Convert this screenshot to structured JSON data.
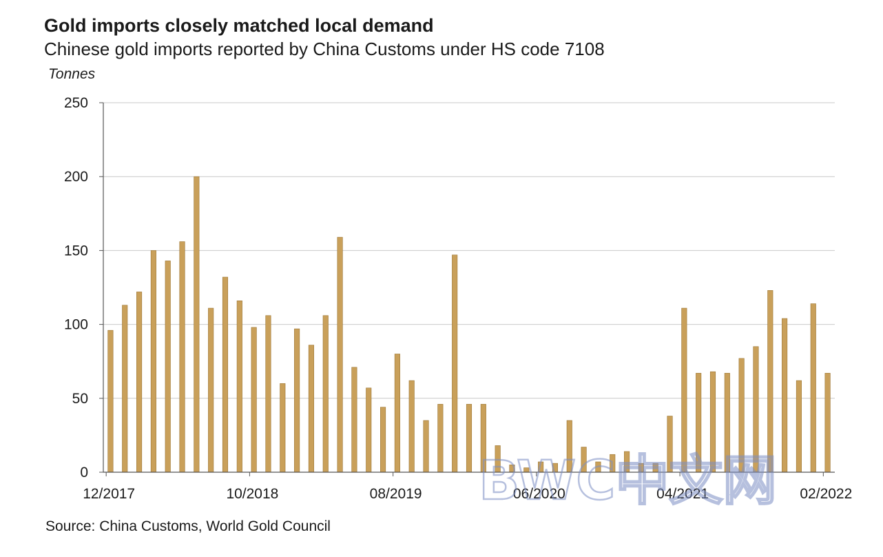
{
  "title": "Gold imports closely matched local demand",
  "subtitle": "Chinese gold imports reported by China Customs under HS code 7108",
  "source": "Source: China Customs, World Gold Council",
  "watermark": "BWC中文网",
  "colors": {
    "bar": "#c9a05a",
    "bar_edge": "#9c7533",
    "grid": "#c9c9c9",
    "axis": "#555555"
  },
  "chart_data": {
    "type": "bar",
    "title": "Gold imports closely matched local demand",
    "subtitle": "Chinese gold imports reported by China Customs under HS code 7108",
    "ylabel": "Tonnes",
    "ylim": [
      0,
      250
    ],
    "yticks": [
      0,
      50,
      100,
      150,
      200,
      250
    ],
    "grid": true,
    "categories": [
      "12/2017",
      "01/2018",
      "02/2018",
      "03/2018",
      "04/2018",
      "05/2018",
      "06/2018",
      "07/2018",
      "08/2018",
      "09/2018",
      "10/2018",
      "11/2018",
      "12/2018",
      "01/2019",
      "02/2019",
      "03/2019",
      "04/2019",
      "05/2019",
      "06/2019",
      "07/2019",
      "08/2019",
      "09/2019",
      "10/2019",
      "11/2019",
      "12/2019",
      "01/2020",
      "02/2020",
      "03/2020",
      "04/2020",
      "05/2020",
      "06/2020",
      "07/2020",
      "08/2020",
      "09/2020",
      "10/2020",
      "11/2020",
      "12/2020",
      "01/2021",
      "02/2021",
      "03/2021",
      "04/2021",
      "05/2021",
      "06/2021",
      "07/2021",
      "08/2021",
      "09/2021",
      "10/2021",
      "11/2021",
      "12/2021",
      "01/2022",
      "02/2022"
    ],
    "values": [
      96,
      113,
      122,
      150,
      143,
      156,
      200,
      111,
      132,
      116,
      98,
      106,
      60,
      97,
      86,
      106,
      159,
      71,
      57,
      44,
      80,
      62,
      35,
      46,
      147,
      46,
      46,
      18,
      5,
      3,
      7,
      6,
      35,
      17,
      7,
      12,
      14,
      6,
      6,
      38,
      111,
      67,
      68,
      67,
      77,
      85,
      123,
      104,
      62,
      114,
      67
    ],
    "x_tick_labels": [
      "12/2017",
      "10/2018",
      "08/2019",
      "06/2020",
      "04/2021",
      "02/2022"
    ],
    "x_tick_indices": [
      0,
      10,
      20,
      30,
      40,
      50
    ]
  }
}
